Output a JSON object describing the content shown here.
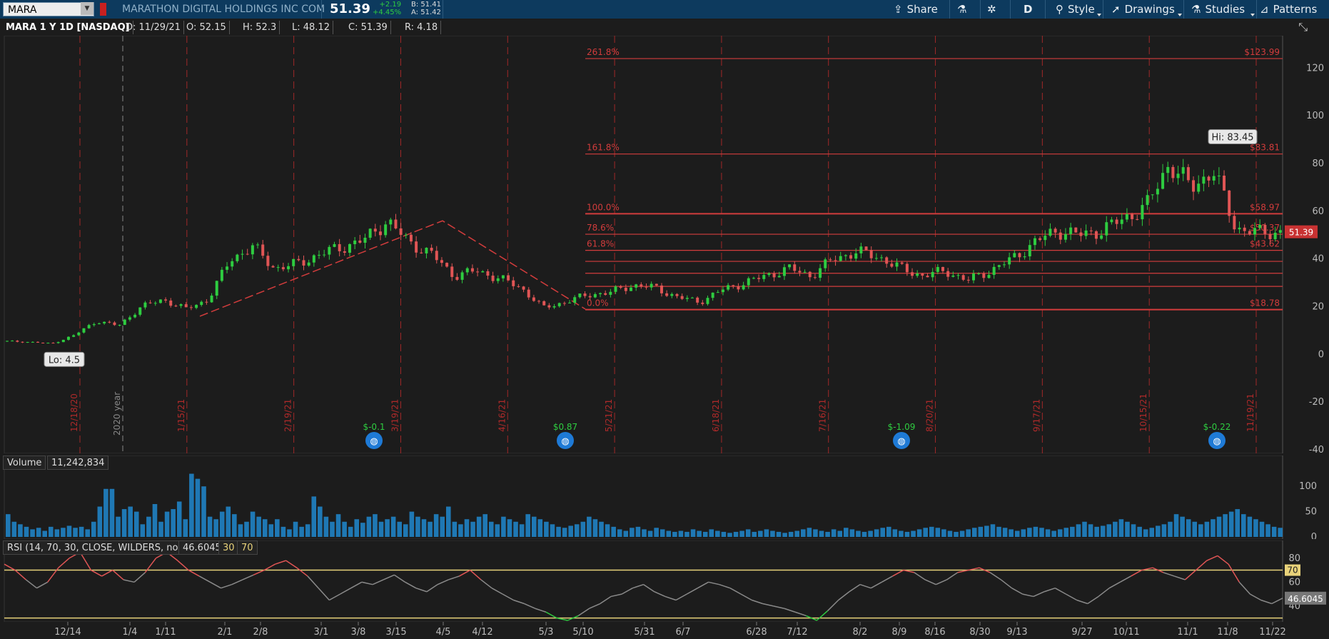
{
  "toolbar": {
    "symbol": "MARA",
    "company": "MARATHON DIGITAL HOLDINGS INC COM",
    "last": "51.39",
    "change": "+2.19",
    "change_pct": "+4.45%",
    "bid": "B: 51.41",
    "ask": "A: 51.42",
    "share_label": "Share",
    "period_label": "D",
    "style_label": "Style",
    "drawings_label": "Drawings",
    "studies_label": "Studies",
    "patterns_label": "Patterns"
  },
  "info": {
    "title": "MARA 1 Y 1D [NASDAQ]",
    "date": "D: 11/29/21",
    "open": "O: 52.15",
    "high": "H: 52.3",
    "low": "L: 48.12",
    "close": "C: 51.39",
    "range": "R: 4.18"
  },
  "colors": {
    "up": "#2ecc40",
    "down": "#e05555",
    "fib": "#d23c3c",
    "volume": "#1f78b4",
    "rsi": "#8a8a8a",
    "rsi_band": "#e8d27a",
    "earnings": "#1e7ad6"
  },
  "chart_data": [
    {
      "type": "candlestick",
      "title": "MARA 1 Y 1D [NASDAQ]",
      "ylim": [
        -40,
        130
      ],
      "yticks": [
        120,
        100,
        80,
        60,
        40,
        20,
        0,
        -20,
        -40
      ],
      "x_labels": [
        "12/14",
        "1/4",
        "1/11",
        "2/1",
        "2/8",
        "3/1",
        "3/8",
        "3/15",
        "4/5",
        "4/12",
        "5/3",
        "5/10",
        "5/31",
        "6/7",
        "6/28",
        "7/12",
        "8/2",
        "8/9",
        "8/16",
        "8/30",
        "9/13",
        "9/27",
        "10/11",
        "11/1",
        "11/8",
        "11/22"
      ],
      "price_path": [
        5.5,
        5.2,
        4.5,
        8,
        14,
        12,
        20,
        23,
        19,
        23,
        40,
        45,
        36,
        38,
        42,
        45,
        48,
        56,
        47,
        42,
        33,
        35,
        32,
        28,
        19.5,
        22,
        25,
        26,
        29,
        28,
        24,
        22,
        27,
        30,
        33,
        36,
        33,
        40,
        43,
        41,
        36,
        33,
        35,
        31,
        35,
        40,
        47,
        52,
        50,
        52,
        57,
        62,
        80,
        70,
        77,
        53,
        51,
        51.39
      ],
      "current_price": "51.39",
      "high_label": "Hi: 83.45",
      "high_value": 83.45,
      "low_label": "Lo: 4.5",
      "low_value": 4.5,
      "fib_levels": [
        {
          "label": "261.8%",
          "value": 123.99,
          "price": "$123.99"
        },
        {
          "label": "161.8%",
          "value": 84,
          "price": "$83.81"
        },
        {
          "label": "100.0%",
          "value": 58.97,
          "price": "$58.97"
        },
        {
          "label": "78.6%",
          "value": 50.37,
          "price": "$50.37"
        },
        {
          "label": "61.8%",
          "value": 43.62,
          "price": "$43.62"
        },
        {
          "label": "",
          "value": 39,
          "price": ""
        },
        {
          "label": "",
          "value": 34,
          "price": ""
        },
        {
          "label": "",
          "value": 28.5,
          "price": ""
        },
        {
          "label": "0.0%",
          "value": 18.78,
          "price": "$18.78"
        }
      ],
      "dated_markers": [
        "12/18/20",
        "1/15/21",
        "2/19/21",
        "3/19/21",
        "4/16/21",
        "5/21/21",
        "6/18/21",
        "7/16/21",
        "8/20/21",
        "9/17/21",
        "10/15/21",
        "11/19/21"
      ],
      "year_marker": "2020 year",
      "earnings": [
        {
          "label": "$-0.1"
        },
        {
          "label": "$0.87"
        },
        {
          "label": "$-1.09"
        },
        {
          "label": "$-0.22"
        }
      ]
    },
    {
      "type": "bar",
      "title": "Volume",
      "value_label": "11,242,834",
      "yticks": [
        100,
        50,
        0
      ],
      "values": [
        45,
        30,
        25,
        20,
        15,
        18,
        12,
        20,
        15,
        18,
        22,
        18,
        20,
        15,
        30,
        60,
        95,
        95,
        40,
        55,
        60,
        50,
        25,
        40,
        65,
        30,
        50,
        55,
        70,
        35,
        125,
        115,
        100,
        40,
        35,
        50,
        60,
        45,
        25,
        30,
        50,
        40,
        35,
        25,
        35,
        20,
        15,
        30,
        20,
        25,
        80,
        60,
        40,
        30,
        45,
        30,
        20,
        35,
        28,
        40,
        45,
        30,
        35,
        40,
        30,
        25,
        50,
        40,
        35,
        30,
        45,
        40,
        60,
        30,
        25,
        35,
        30,
        40,
        45,
        30,
        25,
        40,
        35,
        30,
        25,
        45,
        40,
        35,
        30,
        25,
        20,
        18,
        22,
        25,
        30,
        40,
        35,
        30,
        25,
        20,
        15,
        12,
        18,
        20,
        15,
        12,
        18,
        15,
        12,
        10,
        12,
        10,
        15,
        12,
        10,
        15,
        12,
        10,
        8,
        10,
        12,
        15,
        10,
        12,
        15,
        12,
        10,
        8,
        10,
        12,
        15,
        18,
        15,
        12,
        10,
        15,
        12,
        18,
        15,
        12,
        10,
        12,
        15,
        18,
        20,
        15,
        12,
        10,
        12,
        15,
        18,
        20,
        18,
        15,
        12,
        10,
        12,
        15,
        18,
        20,
        22,
        25,
        20,
        18,
        15,
        12,
        15,
        18,
        20,
        18,
        15,
        12,
        15,
        18,
        20,
        25,
        30,
        25,
        20,
        22,
        25,
        30,
        35,
        30,
        25,
        20,
        15,
        18,
        22,
        25,
        30,
        45,
        40,
        35,
        30,
        25,
        30,
        35,
        40,
        45,
        50,
        55,
        45,
        40,
        35,
        30,
        25,
        20,
        18
      ],
      "ylim": [
        0,
        130
      ]
    },
    {
      "type": "line",
      "title": "RSI (14, 70, 30, CLOSE, WILDERS, no)",
      "value_label": "46.6045",
      "band_low": "30",
      "band_high": "70",
      "yticks": [
        80,
        60,
        40
      ],
      "ylim": [
        28,
        90
      ],
      "overbought": 70,
      "oversold": 30,
      "values": [
        75,
        70,
        62,
        55,
        60,
        72,
        80,
        85,
        70,
        65,
        70,
        62,
        60,
        68,
        80,
        85,
        78,
        70,
        65,
        60,
        55,
        58,
        62,
        66,
        70,
        75,
        78,
        72,
        65,
        55,
        45,
        50,
        55,
        60,
        58,
        62,
        66,
        60,
        55,
        52,
        58,
        62,
        65,
        70,
        62,
        55,
        50,
        45,
        42,
        38,
        35,
        30,
        28,
        32,
        38,
        42,
        48,
        50,
        55,
        58,
        52,
        48,
        45,
        50,
        55,
        60,
        58,
        55,
        50,
        45,
        42,
        40,
        38,
        35,
        32,
        28,
        36,
        45,
        52,
        58,
        55,
        60,
        65,
        70,
        68,
        62,
        58,
        62,
        68,
        70,
        72,
        68,
        62,
        55,
        50,
        48,
        52,
        55,
        50,
        45,
        42,
        48,
        55,
        60,
        65,
        70,
        72,
        68,
        65,
        62,
        70,
        78,
        82,
        75,
        60,
        50,
        45,
        42,
        46.6
      ]
    }
  ]
}
